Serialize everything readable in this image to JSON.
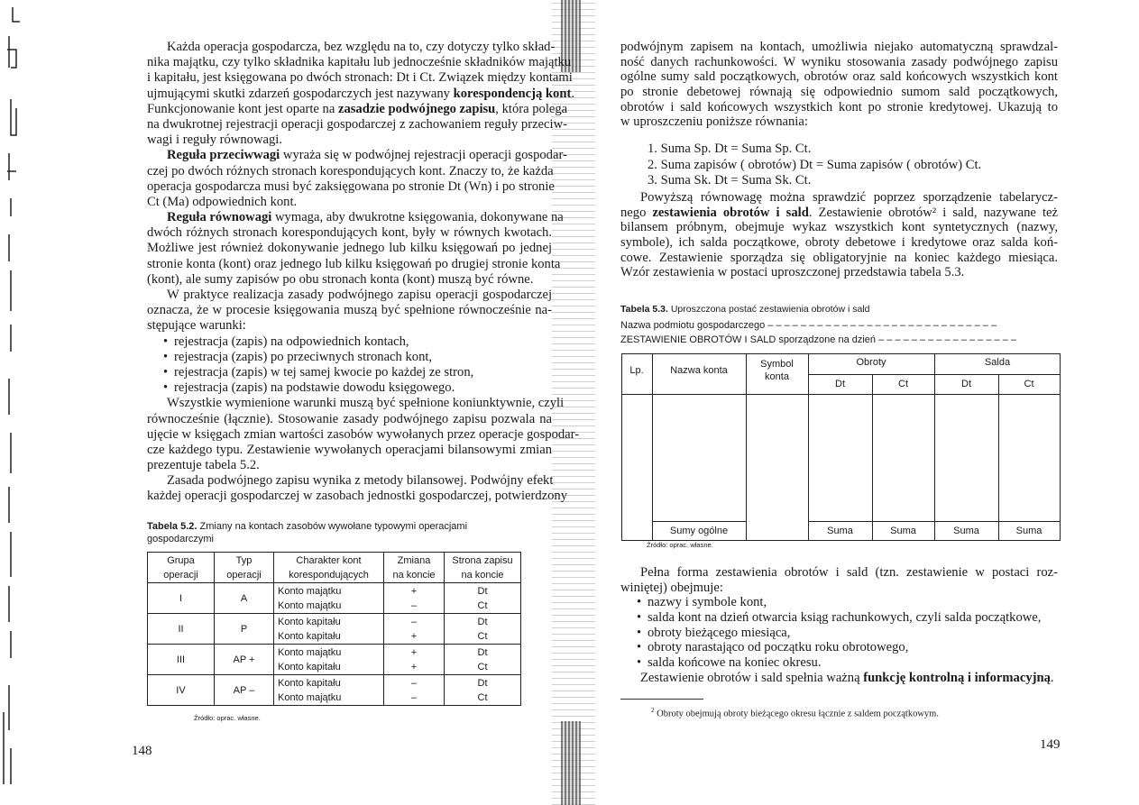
{
  "left_page": {
    "paragraphs": [
      {
        "indent": true,
        "lines": [
          "Każda operacja gospodarcza, bez względu na to, czy dotyczy tylko skład-",
          "nika majątku, czy tylko składnika kapitału lub jednocześnie składników majątku",
          "i kapitału, jest księgowana po dwóch stronach: Dt i Ct. Związek między kontami",
          [
            "ujmującymi skutki zdarzeń gospodarczych jest nazywany ",
            "korespondencją kont",
            "."
          ],
          [
            "Funkcjonowanie kont jest oparte na ",
            "zasadzie podwójnego zapisu",
            ", która polega"
          ],
          "na dwukrotnej rejestracji operacji gospodarczej z zachowaniem reguły przeciw-",
          "wagi i reguły równowagi."
        ]
      },
      {
        "indent": true,
        "lines": [
          [
            "",
            "Reguła przeciwwagi",
            " wyraża się w podwójnej rejestracji operacji gospodar-"
          ],
          "czej po dwóch różnych stronach korespondujących kont. Znaczy to, że każda",
          "operacja gospodarcza musi być zaksięgowana po stronie Dt (Wn) i po stronie",
          "Ct (Ma) odpowiednich kont."
        ]
      },
      {
        "indent": true,
        "lines": [
          [
            "",
            "Reguła równowagi",
            " wymaga, aby dwukrotne księgowania, dokonywane na"
          ],
          "dwóch różnych stronach korespondujących kont, były w równych kwotach.",
          "Możliwe jest również dokonywanie jednego lub kilku księgowań po jednej",
          "stronie konta (kont) oraz jednego lub kilku księgowań po drugiej stronie konta",
          "(kont), ale sumy zapisów po obu stronach konta (kont) muszą być równe."
        ]
      },
      {
        "indent": true,
        "lines": [
          "W praktyce realizacja zasady podwójnego zapisu operacji gospodarczej",
          "oznacza, że w procesie księgowania muszą być spełnione równocześnie na-",
          "stępujące warunki:"
        ]
      },
      {
        "bullets": [
          "rejestracja (zapis) na odpowiednich kontach,",
          "rejestracja (zapis) po przeciwnych stronach kont,",
          "rejestracja (zapis) w tej samej kwocie po każdej ze stron,",
          "rejestracja (zapis) na podstawie dowodu księgowego."
        ]
      },
      {
        "indent": true,
        "lines": [
          "Wszystkie wymienione warunki muszą być spełnione koniunktywnie, czyli",
          "równocześnie (łącznie). Stosowanie zasady podwójnego zapisu pozwala na",
          "ujęcie w księgach zmian wartości zasobów wywołanych przez operacje gospodar-",
          "cze każdego typu. Zestawienie wywołanych operacjami bilansowymi zmian",
          "prezentuje tabela 5.2."
        ]
      },
      {
        "indent": true,
        "cont": true,
        "lines": [
          "Zasada podwójnego zapisu wynika z metody bilansowej. Podwójny efekt",
          "każdej operacji gospodarczej w zasobach jednostki gospodarczej, potwierdzony"
        ]
      }
    ],
    "table_5_2": {
      "caption_label": "Tabela 5.2.",
      "caption_text": " Zmiany na kontach zasobów wywołane typowymi operacjami",
      "caption_text2": "gospodarczymi",
      "headers": [
        [
          "Grupa",
          "operacji"
        ],
        [
          "Typ",
          "operacji"
        ],
        [
          "Charakter kont",
          "korespondujących"
        ],
        [
          "Zmiana",
          "na koncie"
        ],
        [
          "Strona zapisu",
          "na koncie"
        ]
      ],
      "rows": [
        {
          "group": "I",
          "type": "A",
          "accounts": [
            "Konto majątku",
            "Konto majątku"
          ],
          "change": [
            "+",
            "–"
          ],
          "side": [
            "Dt",
            "Ct"
          ]
        },
        {
          "group": "II",
          "type": "P",
          "accounts": [
            "Konto kapitału",
            "Konto kapitału"
          ],
          "change": [
            "–",
            "+"
          ],
          "side": [
            "Dt",
            "Ct"
          ]
        },
        {
          "group": "III",
          "type": "AP +",
          "accounts": [
            "Konto majątku",
            "Konto kapitału"
          ],
          "change": [
            "+",
            "+"
          ],
          "side": [
            "Dt",
            "Ct"
          ]
        },
        {
          "group": "IV",
          "type": "AP –",
          "accounts": [
            "Konto kapitału",
            "Konto majątku"
          ],
          "change": [
            "–",
            "–"
          ],
          "side": [
            "Dt",
            "Ct"
          ]
        }
      ],
      "source": "Źródło: oprac. własne."
    },
    "page_number": "148"
  },
  "right_page": {
    "paragraphs_top": [
      {
        "indent": false,
        "lines": [
          "podwójnym zapisem na kontach, umożliwia niejako automatyczną sprawdzal-",
          "ność danych rachunkowości. W wyniku stosowania zasady podwójnego zapisu",
          "ogólne sumy sald początkowych, obrotów oraz sald końcowych wszystkich kont",
          "po stronie debetowej równają się odpowiednio sumom sald początkowych,",
          "obrotów i sald końcowych wszystkich kont po stronie kredytowej. Ukazują to",
          "w uproszczeniu poniższe równania:"
        ]
      }
    ],
    "equations": [
      "1. Suma Sp. Dt = Suma Sp. Ct.",
      "2. Suma zapisów ( obrotów) Dt = Suma zapisów ( obrotów) Ct.",
      "3. Suma Sk. Dt = Suma Sk. Ct."
    ],
    "paragraphs_mid": [
      {
        "indent": true,
        "lines": [
          "Powyższą równowagę można sprawdzić poprzez sporządzenie tabelarycz-",
          [
            "nego ",
            "zestawienia obrotów i sald",
            ". Zestawienie obrotów² i sald, nazywane też"
          ],
          "bilansem próbnym, obejmuje wykaz wszystkich kont syntetycznych (nazwy,",
          "symbole), ich salda początkowe, obroty debetowe i kredytowe oraz salda koń-",
          "cowe. Zestawienie sporządza się obligatoryjnie na koniec każdego miesiąca.",
          "Wzór zestawienia w postaci uproszczonej przedstawia tabela 5.3."
        ]
      }
    ],
    "table_5_3": {
      "caption_label": "Tabela 5.3.",
      "caption_text": " Uproszczona postać zestawienia obrotów i sald",
      "entity_line": "Nazwa podmiotu gospodarczego – – – – – – – – – – – – – – – – – – – – – – – – – – – –",
      "date_line": "ZESTAWIENIE OBROTÓW I SALD sporządzone na dzień – – – – – – – – – – – – – – – – –",
      "col_lp": "Lp.",
      "col_name": "Nazwa konta",
      "col_symbol": [
        "Symbol",
        "konta"
      ],
      "group_turnover": "Obroty",
      "group_balances": "Salda",
      "sub_dt": "Dt",
      "sub_ct": "Ct",
      "totals_label": "Sumy ogólne",
      "sum_label": "Suma",
      "source": "Źródło: oprac. własne."
    },
    "paragraphs_bottom": [
      {
        "indent": true,
        "lines": [
          "Pełna forma zestawienia obrotów i sald (tzn. zestawienie w postaci roz-",
          "winiętej) obejmuje:"
        ]
      },
      {
        "bullets": [
          "nazwy i symbole kont,",
          "salda kont na dzień otwarcia ksiąg rachunkowych, czyli salda początkowe,",
          "obroty bieżącego miesiąca,",
          "obroty narastająco od początku roku obrotowego,",
          "salda końcowe na koniec okresu."
        ]
      },
      {
        "indent": true,
        "lines": [
          [
            "Zestawienie obrotów i sald spełnia ważną ",
            "funkcję kontrolną i informacyjną",
            "."
          ]
        ]
      }
    ],
    "footnote_mark": "2",
    "footnote": " Obroty obejmują obroty bieżącego okresu łącznie z saldem początkowym.",
    "page_number": "149"
  }
}
